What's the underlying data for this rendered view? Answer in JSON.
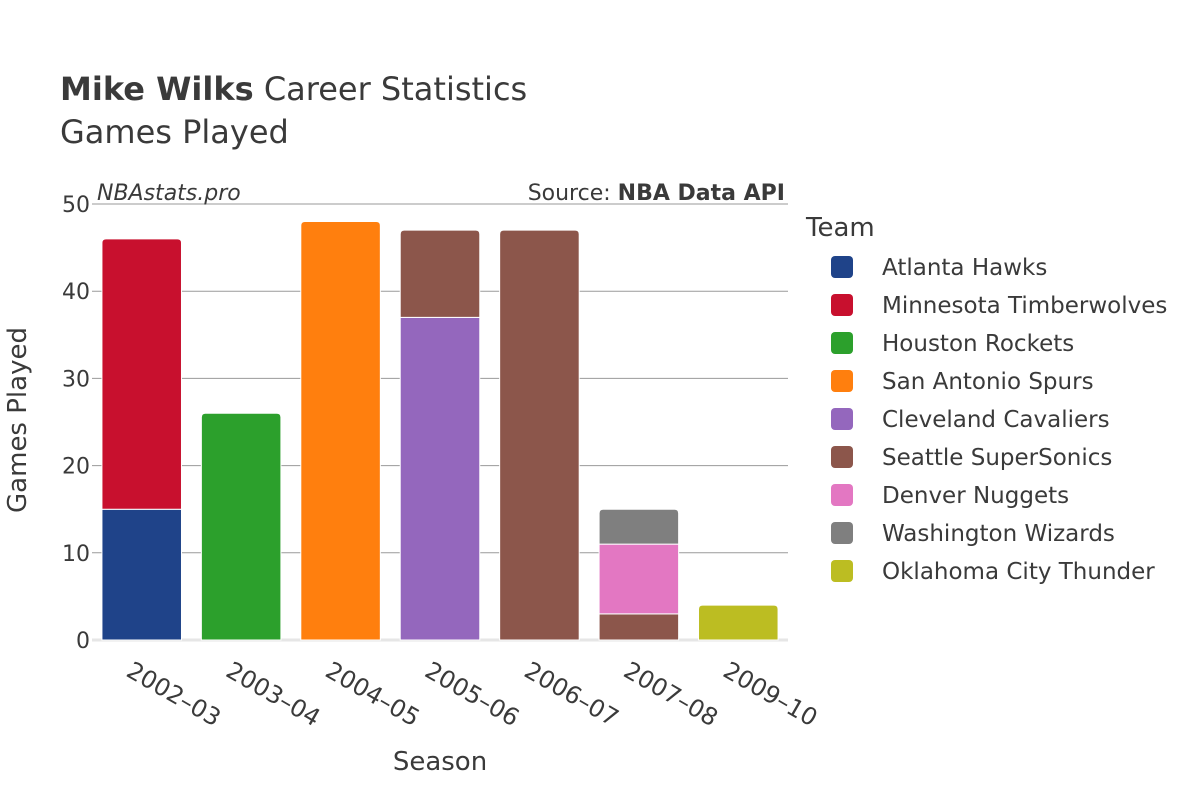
{
  "chart_data": {
    "type": "bar",
    "stacked": true,
    "title_bold": "Mike Wilks",
    "title_rest": " Career Statistics",
    "subtitle": "Games Played",
    "watermark": "NBAstats.pro",
    "source_prefix": "Source: ",
    "source_name": "NBA Data API",
    "xlabel": "Season",
    "ylabel": "Games Played",
    "ylim": [
      0,
      50
    ],
    "yticks": [
      0,
      10,
      20,
      30,
      40,
      50
    ],
    "legend_title": "Team",
    "categories": [
      "2002–03",
      "2003–04",
      "2004–05",
      "2005–06",
      "2006–07",
      "2007–08",
      "2009–10"
    ],
    "series": [
      {
        "name": "Atlanta Hawks",
        "color": "#1f4389",
        "values": [
          15,
          0,
          0,
          0,
          0,
          0,
          0
        ]
      },
      {
        "name": "Minnesota Timberwolves",
        "color": "#c8102e",
        "values": [
          31,
          0,
          0,
          0,
          0,
          0,
          0
        ]
      },
      {
        "name": "Houston Rockets",
        "color": "#2ca02c",
        "values": [
          0,
          26,
          0,
          0,
          0,
          0,
          0
        ]
      },
      {
        "name": "San Antonio Spurs",
        "color": "#ff7f0e",
        "values": [
          0,
          0,
          48,
          0,
          0,
          0,
          0
        ]
      },
      {
        "name": "Cleveland Cavaliers",
        "color": "#9467bd",
        "values": [
          0,
          0,
          0,
          37,
          0,
          0,
          0
        ]
      },
      {
        "name": "Seattle SuperSonics",
        "color": "#8c564b",
        "values": [
          0,
          0,
          0,
          10,
          47,
          3,
          0
        ]
      },
      {
        "name": "Denver Nuggets",
        "color": "#e377c2",
        "values": [
          0,
          0,
          0,
          0,
          0,
          8,
          0
        ]
      },
      {
        "name": "Washington Wizards",
        "color": "#7f7f7f",
        "values": [
          0,
          0,
          0,
          0,
          0,
          4,
          0
        ]
      },
      {
        "name": "Oklahoma City Thunder",
        "color": "#bcbd22",
        "values": [
          0,
          0,
          0,
          0,
          0,
          0,
          4
        ]
      }
    ]
  }
}
